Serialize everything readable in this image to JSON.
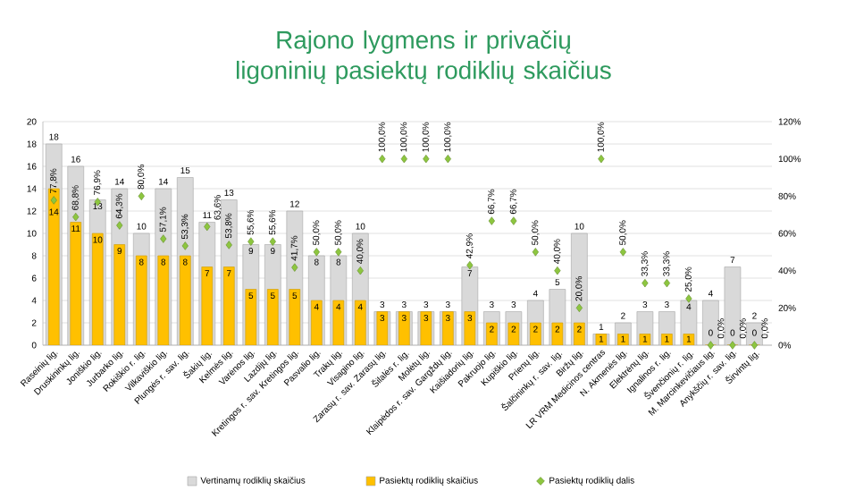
{
  "chart_data": {
    "type": "bar",
    "title": "Rajono lygmens ir privačių ligoninių pasiektų rodiklių skaičius",
    "categories": [
      "Raseinių lig.",
      "Druskininkų lig.",
      "Joniškio lig.",
      "Jurbarko lig.",
      "Rokiškio r. lig.",
      "Vilkaviškio lig.",
      "Plungės r. sav. lig.",
      "Šakių lig.",
      "Kelmės lig.",
      "Varėnos lig.",
      "Lazdijų lig.",
      "Kretingos r. sav. Kretingos lig.",
      "Pasvalio lig.",
      "Trakų lig.",
      "Visagino lig.",
      "Zarasų r. sav. Zarasų lig.",
      "Šilalės r. lig.",
      "Molėtų lig.",
      "Klaipėdos r. sav. Gargždų lig.",
      "Kaišiadorių lig.",
      "Pakruojo lig.",
      "Kupiškio lig.",
      "Prienų lig.",
      "Šalčininkų r. sav. lig.",
      "Biržų lig.",
      "LR VRM Medicinos centras",
      "N. Akmenės lig.",
      "Elektrėnų lig.",
      "Ignalinos r. lig.",
      "Švenčionių r. lig.",
      "M. Marcinkevičiaus lig.",
      "Anykščių r. sav. lig.",
      "Širvintų lig."
    ],
    "series": [
      {
        "name": "Vertinamų rodiklių skaičius",
        "color": "#d9d9d9",
        "values": [
          18,
          16,
          13,
          14,
          10,
          14,
          15,
          11,
          13,
          9,
          9,
          12,
          8,
          8,
          10,
          3,
          3,
          3,
          3,
          7,
          3,
          3,
          4,
          5,
          10,
          1,
          2,
          3,
          3,
          4,
          4,
          7,
          2
        ],
        "value_labels": [
          "18",
          "16",
          "13",
          "14",
          "10",
          "14",
          "15",
          "11",
          "13",
          "9",
          "9",
          "12",
          "8",
          "8",
          "10",
          "3",
          "3",
          "3",
          "3",
          "7",
          "3",
          "3",
          "4",
          "5",
          "10",
          "1",
          "2",
          "3",
          "3",
          "4",
          "4",
          "7",
          "2"
        ]
      },
      {
        "name": "Pasiektų rodiklių skaičius",
        "color": "#ffc000",
        "values": [
          14,
          11,
          10,
          9,
          8,
          8,
          8,
          7,
          7,
          5,
          5,
          5,
          4,
          4,
          4,
          3,
          3,
          3,
          3,
          3,
          2,
          2,
          2,
          2,
          2,
          1,
          1,
          1,
          1,
          1,
          0,
          0,
          0
        ],
        "value_labels": [
          "14",
          "11",
          "10",
          "9",
          "8",
          "8",
          "8",
          "7",
          "7",
          "5",
          "5",
          "5",
          "4",
          "4",
          "4",
          "3",
          "3",
          "3",
          "3",
          "3",
          "2",
          "2",
          "2",
          "2",
          "2",
          "1",
          "1",
          "1",
          "1",
          "1",
          "0",
          "0",
          "0"
        ]
      },
      {
        "name": "Pasiektų rodiklių dalis",
        "type": "scatter",
        "axis": "y2",
        "marker": "diamond",
        "color": "#8dc63f",
        "values": [
          77.8,
          68.8,
          76.9,
          64.3,
          80.0,
          57.1,
          53.3,
          63.6,
          53.8,
          55.6,
          55.6,
          41.7,
          50.0,
          50.0,
          40.0,
          100.0,
          100.0,
          100.0,
          100.0,
          42.9,
          66.7,
          66.7,
          50.0,
          40.0,
          20.0,
          100.0,
          50.0,
          33.3,
          33.3,
          25.0,
          0.0,
          0.0,
          0.0
        ],
        "value_labels": [
          "77,8%",
          "68,8%",
          "76,9%",
          "64,3%",
          "80,0%",
          "57,1%",
          "53,3%",
          "63,6%",
          "53,8%",
          "55,6%",
          "55,6%",
          "41,7%",
          "50,0%",
          "50,0%",
          "40,0%",
          "100,0%",
          "100,0%",
          "100,0%",
          "100,0%",
          "42,9%",
          "66,7%",
          "66,7%",
          "50,0%",
          "40,0%",
          "20,0%",
          "100,0%",
          "50,0%",
          "33,3%",
          "33,3%",
          "25,0%",
          "0,0%",
          "0,0%",
          "0,0%"
        ]
      }
    ],
    "ylim": [
      0,
      20
    ],
    "yticks": [
      0,
      2,
      4,
      6,
      8,
      10,
      12,
      14,
      16,
      18,
      20
    ],
    "y2lim": [
      0,
      120
    ],
    "y2ticks": [
      {
        "value": 0,
        "label": "0%"
      },
      {
        "value": 20,
        "label": "20%"
      },
      {
        "value": 40,
        "label": "40%"
      },
      {
        "value": 60,
        "label": "60%"
      },
      {
        "value": 80,
        "label": "80%"
      },
      {
        "value": 100,
        "label": "100%"
      },
      {
        "value": 120,
        "label": "120%"
      }
    ],
    "grid": "y",
    "legend": "bottom"
  }
}
